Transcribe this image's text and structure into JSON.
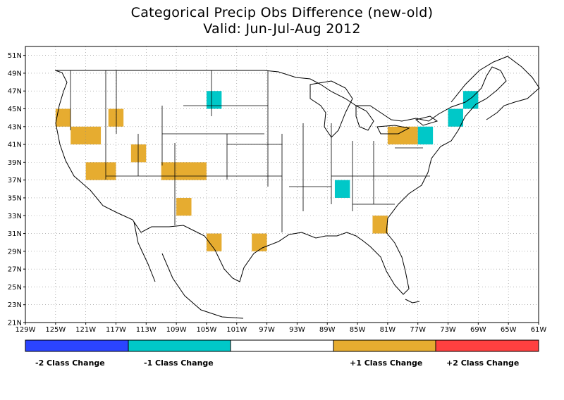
{
  "title": "Categorical Precip Obs Difference (new-old)",
  "subtitle": "Valid: Jun-Jul-Aug 2012",
  "colors": {
    "minus2": "#2b44ff",
    "minus1": "#00c8c8",
    "zero": "#ffffff",
    "plus1": "#e6ac30",
    "plus2": "#ff4040"
  },
  "axes": {
    "lat_ticks": [
      "21N",
      "23N",
      "25N",
      "27N",
      "29N",
      "31N",
      "33N",
      "35N",
      "37N",
      "39N",
      "41N",
      "43N",
      "45N",
      "47N",
      "49N",
      "51N"
    ],
    "lon_ticks": [
      "129W",
      "125W",
      "121W",
      "117W",
      "113W",
      "109W",
      "105W",
      "101W",
      "97W",
      "93W",
      "89W",
      "85W",
      "81W",
      "77W",
      "73W",
      "69W",
      "65W",
      "61W"
    ],
    "lat_range": [
      21,
      52
    ],
    "lon_range": [
      -129,
      -61
    ],
    "grid": "dotted"
  },
  "legend": {
    "labels": [
      "-2 Class Change",
      "-1 Class Change",
      "",
      "+1 Class Change",
      "+2 Class Change"
    ]
  },
  "chart_data": {
    "type": "heatmap",
    "title": "Categorical Precip Obs Difference (new-old)",
    "subtitle": "Valid: Jun-Jul-Aug 2012",
    "cell_size_deg": 2,
    "categories": [
      "-2 Class Change",
      "-1 Class Change",
      "0",
      "+1 Class Change",
      "+2 Class Change"
    ],
    "cells": [
      {
        "lon": [
          -125,
          -123
        ],
        "lat": [
          43,
          45
        ],
        "value": 1
      },
      {
        "lon": [
          -123,
          -119
        ],
        "lat": [
          41,
          43
        ],
        "value": 1
      },
      {
        "lon": [
          -118,
          -116
        ],
        "lat": [
          43,
          45
        ],
        "value": 1
      },
      {
        "lon": [
          -115,
          -113
        ],
        "lat": [
          39,
          41
        ],
        "value": 1
      },
      {
        "lon": [
          -121,
          -117
        ],
        "lat": [
          37,
          39
        ],
        "value": 1
      },
      {
        "lon": [
          -111,
          -105
        ],
        "lat": [
          37,
          39
        ],
        "value": 1
      },
      {
        "lon": [
          -109,
          -107
        ],
        "lat": [
          33,
          35
        ],
        "value": 1
      },
      {
        "lon": [
          -105,
          -103
        ],
        "lat": [
          29,
          31
        ],
        "value": 1
      },
      {
        "lon": [
          -99,
          -97
        ],
        "lat": [
          29,
          31
        ],
        "value": 1
      },
      {
        "lon": [
          -83,
          -81
        ],
        "lat": [
          31,
          33
        ],
        "value": 1
      },
      {
        "lon": [
          -81,
          -77
        ],
        "lat": [
          41,
          43
        ],
        "value": 1
      },
      {
        "lon": [
          -105,
          -103
        ],
        "lat": [
          45,
          47
        ],
        "value": -1
      },
      {
        "lon": [
          -88,
          -86
        ],
        "lat": [
          35,
          37
        ],
        "value": -1
      },
      {
        "lon": [
          -77,
          -75
        ],
        "lat": [
          41,
          43
        ],
        "value": -1
      },
      {
        "lon": [
          -73,
          -71
        ],
        "lat": [
          43,
          45
        ],
        "value": -1
      },
      {
        "lon": [
          -71,
          -69
        ],
        "lat": [
          45,
          47
        ],
        "value": -1
      }
    ]
  }
}
